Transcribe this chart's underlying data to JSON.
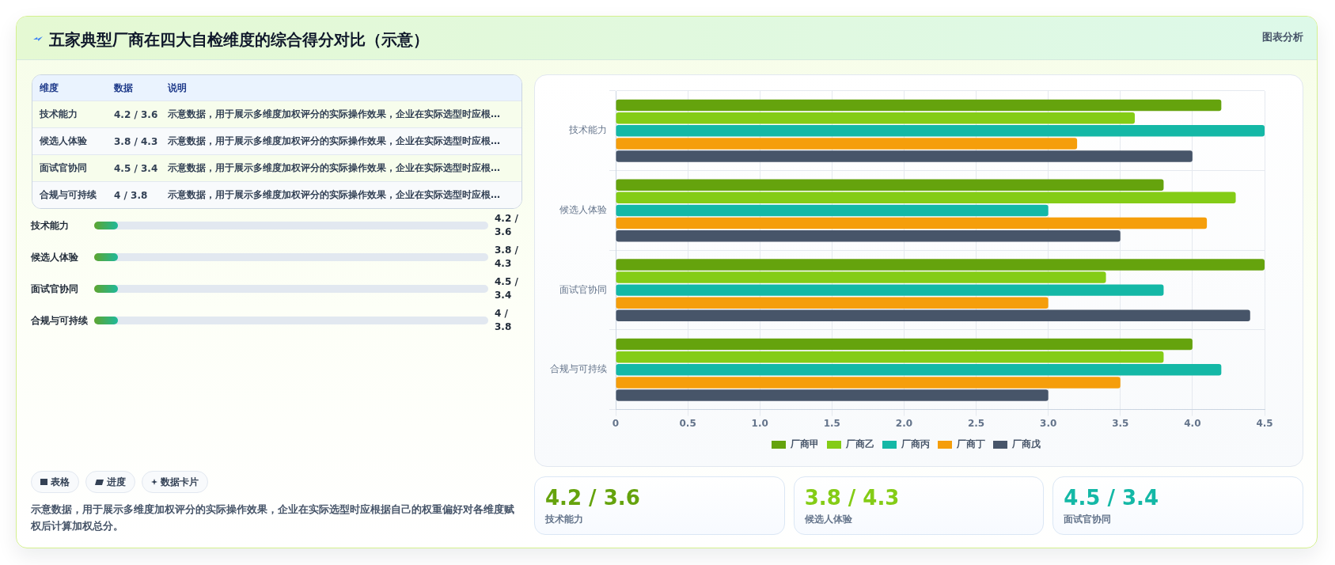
{
  "chart_data": [
    {
      "type": "other",
      "title": "五家典型厂商在四大自检维度的综合得分对比（示意）",
      "annotations": [
        "图表分析"
      ]
    },
    {
      "type": "other",
      "categories": [
        "技术能力",
        "候选人体验",
        "面试官协同",
        "合规与可持续"
      ],
      "annotations": [
        "维度",
        "数据",
        "说明",
        "4.2 / 3.6",
        "示意数据，用于展示多维度加权评分的实际操作效果，企业在实际选型时应根…",
        "3.8 / 4.3",
        "示意数据，用于展示多维度加权评分的实际操作效果，企业在实际选型时应根…",
        "4.5 / 3.4",
        "示意数据，用于展示多维度加权评分的实际操作效果，企业在实际选型时应根…",
        "4 / 3.8",
        "示意数据，用于展示多维度加权评分的实际操作效果，企业在实际选型时应根…"
      ]
    },
    {
      "type": "other",
      "categories": [
        "技术能力",
        "候选人体验",
        "面试官协同",
        "合规与可持续"
      ],
      "annotations": [
        "4.2 / 3.6",
        "3.8 / 4.3",
        "4.5 / 3.4",
        "4 / 3.8"
      ]
    },
    {
      "type": "other",
      "annotations": [
        "表格",
        "进度",
        "数据卡片",
        "示意数据，用于展示多维度加权评分的实际操作效果，企业在实际选型时应根据自己的权重偏好对各维度赋权后计算加权总分。"
      ]
    },
    {
      "type": "bar",
      "orientation": "horizontal",
      "categories": [
        "技术能力",
        "候选人体验",
        "面试官协同",
        "合规与可持续"
      ],
      "series": [
        {
          "name": "厂商甲",
          "color": "#65a30d",
          "values": [
            4.2,
            3.8,
            4.5,
            4.0
          ]
        },
        {
          "name": "厂商乙",
          "color": "#84cc16",
          "values": [
            3.6,
            4.3,
            3.4,
            3.8
          ]
        },
        {
          "name": "厂商丙",
          "color": "#14b8a6",
          "values": [
            4.5,
            3.0,
            3.8,
            4.2
          ]
        },
        {
          "name": "厂商丁",
          "color": "#f59e0b",
          "values": [
            3.2,
            4.1,
            3.0,
            3.5
          ]
        },
        {
          "name": "厂商戊",
          "color": "#475569",
          "values": [
            4.0,
            3.5,
            4.4,
            3.0
          ]
        }
      ],
      "xlim": [
        0,
        4.5
      ],
      "xticks": [
        0,
        0.5,
        {
          "value": 1,
          "label": "1.0"
        },
        1.5,
        {
          "value": 2,
          "label": "2.0"
        },
        2.5,
        {
          "value": 3,
          "label": "3.0"
        },
        3.5,
        {
          "value": 4,
          "label": "4.0"
        },
        4.5
      ],
      "grid": true,
      "legend": "bottom"
    },
    {
      "type": "other",
      "categories": [
        "技术能力",
        "候选人体验",
        "面试官协同"
      ],
      "annotations": [
        "4.2 / 3.6",
        "3.8 / 4.3",
        "4.5 / 3.4"
      ]
    }
  ]
}
